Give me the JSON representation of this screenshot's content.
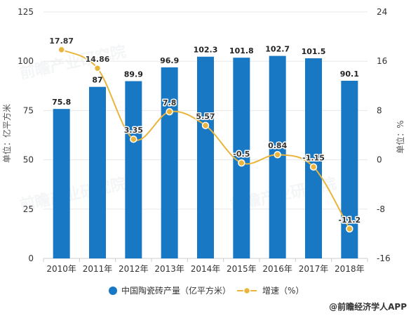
{
  "chart_data": {
    "type": "bar",
    "categories": [
      "2010年",
      "2011年",
      "2012年",
      "2013年",
      "2014年",
      "2015年",
      "2016年",
      "2017年",
      "2018年"
    ],
    "series": [
      {
        "name": "中国陶瓷砖产量（亿平方米）",
        "type": "bar",
        "axis": "left",
        "color": "#1878C4",
        "values": [
          75.8,
          87,
          89.9,
          96.9,
          102.3,
          101.8,
          102.7,
          101.5,
          90.1
        ]
      },
      {
        "name": "增速（%）",
        "type": "line",
        "axis": "right",
        "color": "#EAB53C",
        "values": [
          17.87,
          14.86,
          3.35,
          7.8,
          5.57,
          -0.5,
          0.84,
          -1.15,
          -11.2
        ]
      }
    ],
    "ylabel": "单位：亿平方米",
    "y2label": "单位：%",
    "ylim": [
      0,
      125
    ],
    "yticks": [
      0,
      25,
      50,
      75,
      100,
      125
    ],
    "y2lim": [
      -16,
      24
    ],
    "y2ticks": [
      -16,
      -8,
      0,
      8,
      16,
      24
    ],
    "grid": true,
    "legend": "bottom"
  },
  "watermark": "前瞻产业研究院",
  "source_label": "@前瞻经济学人APP"
}
